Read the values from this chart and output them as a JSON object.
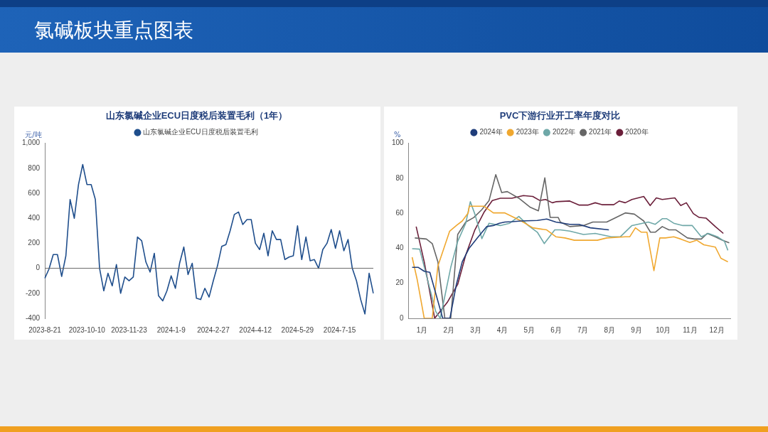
{
  "chart_data": [
    {
      "type": "line",
      "title": "山东氯碱企业ECU日度税后装置毛利（1年）",
      "ylabel": "元/吨",
      "annotations": [
        "氯碱板块重点图表"
      ],
      "categories": [
        "2023-8-21",
        null,
        null,
        null,
        null,
        null,
        null,
        null,
        null,
        null,
        "2023-10-10",
        null,
        null,
        null,
        null,
        null,
        null,
        null,
        null,
        null,
        "2023-11-23",
        null,
        null,
        null,
        null,
        null,
        null,
        null,
        null,
        null,
        "2024-1-9",
        null,
        null,
        null,
        null,
        null,
        null,
        null,
        null,
        null,
        "2024-2-27",
        null,
        null,
        null,
        null,
        null,
        null,
        null,
        null,
        null,
        "2024-4-12",
        null,
        null,
        null,
        null,
        null,
        null,
        null,
        null,
        null,
        "2024-5-29",
        null,
        null,
        null,
        null,
        null,
        null,
        null,
        null,
        null,
        "2024-7-15",
        null,
        null,
        null,
        null,
        null,
        null,
        null,
        null
      ],
      "series": [
        {
          "name": "山东氯碱企业ECU日度税后装置毛利",
          "color": "#1f4e8c",
          "values": [
            -80,
            -5,
            110,
            110,
            -65,
            100,
            550,
            400,
            670,
            830,
            670,
            670,
            550,
            0,
            -180,
            -40,
            -140,
            30,
            -200,
            -70,
            -100,
            -70,
            250,
            220,
            50,
            -30,
            120,
            -220,
            -260,
            -180,
            -60,
            -160,
            40,
            170,
            -50,
            40,
            -240,
            -250,
            -160,
            -230,
            -100,
            20,
            175,
            190,
            300,
            430,
            450,
            350,
            390,
            390,
            200,
            150,
            280,
            100,
            300,
            230,
            230,
            70,
            90,
            100,
            340,
            70,
            250,
            60,
            70,
            0,
            150,
            200,
            310,
            160,
            300,
            140,
            230,
            0,
            -100,
            -250,
            -365,
            -40,
            -200
          ]
        }
      ],
      "ylim": [
        -400,
        1000
      ],
      "yticks": [
        -400,
        -200,
        0,
        200,
        400,
        600,
        800,
        {
          "value": 1000,
          "label": "1,000"
        }
      ],
      "legend": "top"
    },
    {
      "type": "line",
      "title": "PVC下游行业开工率年度对比",
      "ylabel": "%",
      "xlim": [
        0,
        12
      ],
      "xticks": [
        {
          "value": 0.5,
          "label": "1月"
        },
        {
          "value": 1.5,
          "label": "2月"
        },
        {
          "value": 2.5,
          "label": "3月"
        },
        {
          "value": 3.5,
          "label": "4月"
        },
        {
          "value": 4.5,
          "label": "5月"
        },
        {
          "value": 5.5,
          "label": "6月"
        },
        {
          "value": 6.5,
          "label": "7月"
        },
        {
          "value": 7.5,
          "label": "8月"
        },
        {
          "value": 8.5,
          "label": "9月"
        },
        {
          "value": 9.5,
          "label": "10月"
        },
        {
          "value": 10.5,
          "label": "11月"
        },
        {
          "value": 11.5,
          "label": "12月"
        }
      ],
      "ylim": [
        0,
        100
      ],
      "yticks": [
        0,
        20,
        40,
        60,
        80,
        100
      ],
      "legend": "top",
      "series": [
        {
          "name": "2024年",
          "color": "#1f3d7a",
          "x": [
            0.13,
            0.36,
            0.58,
            0.79,
            1.27,
            1.54,
            1.78,
            2.0,
            2.26,
            2.56,
            2.91,
            3.16,
            3.38,
            3.59,
            3.85,
            4.2,
            4.8,
            5.15,
            5.49,
            6.01,
            6.35,
            6.78,
            7.47
          ],
          "values": [
            29.1,
            29.1,
            26.9,
            26.3,
            0,
            0,
            19.4,
            32.3,
            40.1,
            45.9,
            52.4,
            53,
            54.3,
            55,
            55.2,
            55.6,
            55.9,
            56.7,
            55,
            53.7,
            53.7,
            51.7,
            50.5
          ]
        },
        {
          "name": "2023年",
          "color": "#f0a830",
          "x": [
            0.13,
            0.32,
            0.58,
            0.88,
            1.09,
            1.53,
            1.78,
            2.0,
            2.22,
            2.26,
            2.82,
            3.16,
            3.59,
            4.2,
            4.63,
            5.15,
            5.49,
            5.83,
            6.18,
            7.04,
            7.39,
            8.08,
            8.25,
            8.46,
            8.68,
            8.89,
            9.15,
            9.37,
            9.58,
            9.89,
            10.15,
            10.49,
            10.75,
            11.01,
            11.44,
            11.65,
            11.91
          ],
          "values": [
            34.9,
            22,
            0,
            0,
            29.8,
            49.8,
            53,
            55.6,
            60.2,
            64,
            64,
            60.2,
            60.2,
            55.6,
            51.7,
            50.5,
            46.6,
            45.9,
            44.6,
            44.6,
            45.9,
            46.6,
            46.6,
            51.7,
            49.2,
            49.2,
            27.2,
            45.9,
            45.9,
            46.6,
            45.3,
            43.3,
            44.6,
            42,
            40.7,
            34.3,
            32.3
          ]
        },
        {
          "name": "2022年",
          "color": "#6fa8a8",
          "x": [
            0.13,
            0.41,
            1.01,
            1.18,
            1.57,
            1.83,
            2.13,
            2.3,
            2.47,
            2.73,
            3.0,
            3.42,
            3.77,
            4.11,
            4.46,
            4.8,
            5.06,
            5.45,
            5.66,
            6.01,
            6.52,
            6.96,
            7.56,
            7.9,
            8.33,
            8.94,
            9.2,
            9.46,
            9.63,
            9.89,
            10.23,
            10.58,
            10.92,
            11.18,
            11.52,
            11.78,
            11.91
          ],
          "values": [
            39.8,
            39.5,
            3.9,
            0,
            29.1,
            44,
            54.3,
            66.6,
            59.5,
            45.5,
            54.3,
            53,
            54.3,
            58.2,
            53,
            49.2,
            42.7,
            50.5,
            50.5,
            49.8,
            47.9,
            48.5,
            46.6,
            46.6,
            53,
            55,
            53.7,
            56.9,
            56.9,
            54.3,
            53,
            53,
            46.6,
            48.5,
            46.6,
            44,
            38.8
          ]
        },
        {
          "name": "2021年",
          "color": "#666666",
          "x": [
            0.23,
            0.66,
            0.88,
            1.09,
            1.35,
            1.57,
            1.83,
            2.13,
            2.43,
            2.73,
            3.0,
            3.25,
            3.47,
            3.68,
            4.11,
            4.54,
            4.84,
            5.08,
            5.28,
            5.58,
            5.66,
            6.01,
            6.52,
            6.87,
            7.39,
            8.08,
            8.42,
            8.77,
            9.02,
            9.2,
            9.46,
            9.71,
            9.97,
            10.4,
            10.66,
            10.92,
            11.14,
            11.44,
            11.7,
            11.96
          ],
          "values": [
            45.9,
            45.3,
            42.7,
            32.3,
            0,
            0,
            47.9,
            55,
            57.6,
            62.1,
            67.3,
            82.1,
            71.8,
            72.4,
            68.6,
            63.4,
            61.4,
            80.2,
            57.6,
            57.6,
            55,
            52.4,
            53,
            55,
            55,
            60.2,
            59.5,
            55.6,
            49.2,
            49.2,
            52.4,
            50.5,
            50.5,
            45.9,
            45.3,
            45.3,
            48.5,
            46.6,
            44.6,
            43.1
          ]
        },
        {
          "name": "2020年",
          "color": "#6b1f3a",
          "x": [
            0.28,
            0.58,
            0.97,
            1.44,
            1.83,
            2.13,
            2.47,
            2.82,
            3.12,
            3.42,
            3.85,
            4.28,
            4.63,
            4.89,
            5.11,
            5.36,
            5.49,
            6.01,
            6.35,
            6.7,
            6.96,
            7.21,
            7.65,
            7.86,
            8.08,
            8.33,
            8.77,
            9.01,
            9.24,
            9.46,
            9.93,
            10.15,
            10.36,
            10.62,
            10.84,
            11.1,
            11.44,
            11.74
          ],
          "values": [
            52.4,
            32.3,
            0,
            9.1,
            19.4,
            36.2,
            50.5,
            60.8,
            67.3,
            68.6,
            68.6,
            70.1,
            69.6,
            67.3,
            67.9,
            66,
            66.6,
            67,
            64.7,
            64.7,
            66,
            64.9,
            64.9,
            67,
            66,
            67.9,
            69.6,
            64.4,
            68.8,
            67.9,
            68.8,
            64.4,
            66,
            59.8,
            57.6,
            57.2,
            52.4,
            48.5
          ]
        }
      ]
    }
  ]
}
